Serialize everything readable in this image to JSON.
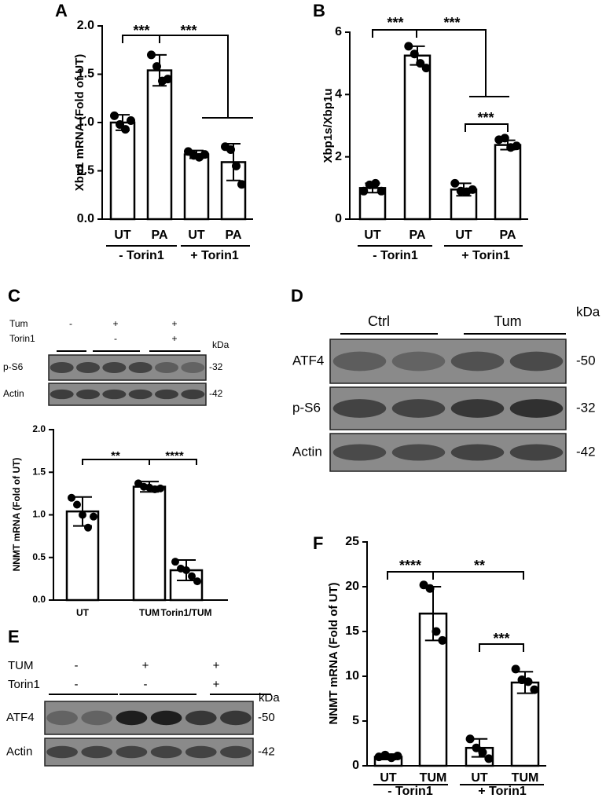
{
  "chart_data": [
    {
      "type": "bar",
      "panel": "A",
      "ylabel": "Xbp1 mRNA (Fold of  UT)",
      "categories": [
        "UT",
        "PA",
        "UT",
        "PA"
      ],
      "groups": [
        "- Torin1",
        "+ Torin1"
      ],
      "values": [
        1.0,
        1.54,
        0.67,
        0.59
      ],
      "errors": [
        0.08,
        0.16,
        0.04,
        0.19
      ],
      "points": [
        [
          1.07,
          0.98,
          0.93,
          1.02
        ],
        [
          1.7,
          1.58,
          1.43,
          1.45
        ],
        [
          0.7,
          0.66,
          0.64,
          0.67
        ],
        [
          0.75,
          0.72,
          0.55,
          0.36
        ]
      ],
      "color": "#000000",
      "ylim": [
        0,
        2.0
      ],
      "yticks": [
        {
          "value": 0,
          "label": "0.0"
        },
        {
          "value": 0.5,
          "label": "0.5"
        },
        {
          "value": 1.0,
          "label": "1.0"
        },
        {
          "value": 1.5,
          "label": "1.5"
        },
        {
          "value": 2.0,
          "label": "2.0"
        }
      ],
      "annotations": [
        "***",
        "***"
      ]
    },
    {
      "type": "bar",
      "panel": "B",
      "ylabel": "Xbp1s/Xbp1u",
      "categories": [
        "UT",
        "PA",
        "UT",
        "PA"
      ],
      "groups": [
        "- Torin1",
        "+ Torin1"
      ],
      "values": [
        1.0,
        5.25,
        0.95,
        2.38
      ],
      "errors": [
        0.15,
        0.3,
        0.2,
        0.15
      ],
      "points": [
        [
          0.9,
          1.1,
          1.15,
          0.9
        ],
        [
          5.55,
          5.3,
          5.0,
          4.85
        ],
        [
          1.15,
          0.9,
          0.88,
          0.95
        ],
        [
          2.55,
          2.6,
          2.3,
          2.35
        ]
      ],
      "color": "#000000",
      "ylim": [
        0,
        6
      ],
      "yticks": [
        0,
        2,
        4,
        6
      ],
      "annotations": [
        "***",
        "***",
        "***"
      ]
    },
    {
      "type": "bar",
      "panel": "C",
      "ylabel": "NNMT mRNA (Fold of  UT)",
      "categories": [
        "UT",
        "TUM",
        "Torin1/TUM"
      ],
      "values": [
        1.04,
        1.33,
        0.35
      ],
      "errors": [
        0.17,
        0.06,
        0.12
      ],
      "points": [
        [
          1.2,
          1.12,
          1.0,
          0.85,
          0.98
        ],
        [
          1.37,
          1.33,
          1.32,
          1.3,
          1.31
        ],
        [
          0.45,
          0.37,
          0.35,
          0.28,
          0.22
        ]
      ],
      "color": "#000000",
      "ylim": [
        0,
        2.0
      ],
      "yticks": [
        {
          "value": 0,
          "label": "0.0"
        },
        {
          "value": 0.5,
          "label": "0.5"
        },
        {
          "value": 1.0,
          "label": "1.0"
        },
        {
          "value": 1.5,
          "label": "1.5"
        },
        {
          "value": 2.0,
          "label": "2.0"
        }
      ],
      "annotations": [
        "**",
        "****"
      ]
    },
    {
      "type": "bar",
      "panel": "F",
      "ylabel": "NNMT mRNA (Fold of  UT)",
      "categories": [
        "UT",
        "TUM",
        "UT",
        "TUM"
      ],
      "groups": [
        "- Torin1",
        "+ Torin1"
      ],
      "values": [
        1.0,
        17.0,
        2.0,
        9.3
      ],
      "errors": [
        0.3,
        3.0,
        1.0,
        1.2
      ],
      "points": [
        [
          1.0,
          1.2,
          0.9,
          1.1
        ],
        [
          20.2,
          19.8,
          15.0,
          14.0
        ],
        [
          3.0,
          2.0,
          1.5,
          0.8
        ],
        [
          10.8,
          9.6,
          9.4,
          8.5
        ]
      ],
      "color": "#000000",
      "ylim": [
        0,
        25
      ],
      "yticks": [
        0,
        5,
        10,
        15,
        20,
        25
      ],
      "annotations": [
        "****",
        "**",
        "***"
      ]
    }
  ],
  "blots": [
    {
      "panel": "C",
      "conditions": [
        {
          "name": "Tum",
          "marks": [
            "-",
            "+",
            "+"
          ]
        },
        {
          "name": "Torin1",
          "marks": [
            null,
            "-",
            "+"
          ]
        }
      ],
      "unit": "kDa",
      "rows": [
        {
          "name": "p-S6",
          "kda": "-32"
        },
        {
          "name": "Actin",
          "kda": "-42"
        }
      ]
    },
    {
      "panel": "D",
      "groups": [
        "Ctrl",
        "Tum"
      ],
      "unit": "kDa",
      "rows": [
        {
          "name": "ATF4",
          "kda": "-50"
        },
        {
          "name": "p-S6",
          "kda": "-32"
        },
        {
          "name": "Actin",
          "kda": "-42"
        }
      ]
    },
    {
      "panel": "E",
      "conditions": [
        {
          "name": "TUM",
          "marks": [
            "-",
            "+",
            "+"
          ]
        },
        {
          "name": "Torin1",
          "marks": [
            "-",
            "-",
            "+"
          ]
        }
      ],
      "unit": "kDa",
      "rows": [
        {
          "name": "ATF4",
          "kda": "-50"
        },
        {
          "name": "Actin",
          "kda": "-42"
        }
      ]
    }
  ]
}
